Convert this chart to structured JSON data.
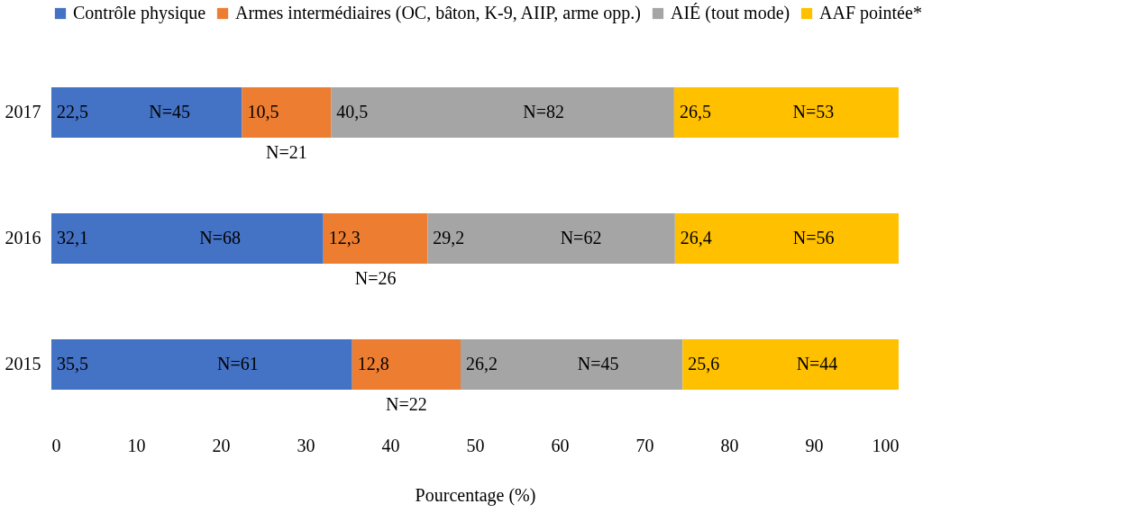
{
  "chart_data": {
    "type": "bar",
    "orientation": "horizontal",
    "stacked": true,
    "xlabel": "Pourcentage (%)",
    "categories": [
      "2017",
      "2016",
      "2015"
    ],
    "series": [
      {
        "name": "Contrôle physique",
        "color": "#4472c4",
        "values": [
          22.5,
          32.1,
          35.5
        ],
        "value_labels": [
          "22,5",
          "32,1",
          "35,5"
        ]
      },
      {
        "name": "Armes intermédiaires (OC, bâton, K-9, AIIP, arme opp.)",
        "color": "#ed7d31",
        "values": [
          10.5,
          12.3,
          12.8
        ],
        "value_labels": [
          "10,5",
          "12,3",
          "12,8"
        ]
      },
      {
        "name": "AIÉ (tout mode)",
        "color": "#a5a5a5",
        "values": [
          40.5,
          29.2,
          26.2
        ],
        "value_labels": [
          "40,5",
          "29,2",
          "26,2"
        ]
      },
      {
        "name": "AAF pointée*",
        "color": "#ffc000",
        "values": [
          26.5,
          26.4,
          25.6
        ],
        "value_labels": [
          "26,5",
          "26,4",
          "25,6"
        ]
      }
    ],
    "xlim": [
      0,
      100
    ],
    "xticks": [
      0,
      10,
      20,
      30,
      40,
      50,
      60,
      70,
      80,
      90,
      100
    ],
    "grid": false,
    "legend": "top",
    "annotations": [
      "N=45",
      "N=21",
      "N=82",
      "N=53",
      "N=68",
      "N=26",
      "N=62",
      "N=56",
      "N=61",
      "N=22",
      "N=45",
      "N=44"
    ]
  }
}
